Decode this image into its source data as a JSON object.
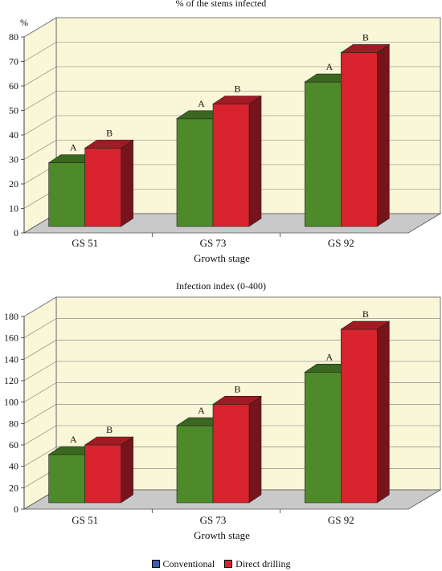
{
  "legend": {
    "items": [
      {
        "label": "Conventional",
        "color": "#3a5fa8"
      },
      {
        "label": "Direct drilling",
        "color": "#d8232f"
      }
    ]
  },
  "colors": {
    "conventional_bar": "#4e8a2a",
    "direct_drilling_bar": "#d8232f",
    "back_wall": "#faf6d8",
    "floor": "#c9c9c9"
  },
  "chart_data": [
    {
      "type": "bar",
      "title": "% of the stems infected",
      "ylabel": "%",
      "xlabel": "Growth stage",
      "categories": [
        "GS 51",
        "GS 73",
        "GS 92"
      ],
      "ylim": [
        0,
        80
      ],
      "yticks": [
        0,
        10,
        20,
        30,
        40,
        50,
        60,
        70,
        80
      ],
      "grid": true,
      "series": [
        {
          "name": "Conventional",
          "values": [
            26,
            44,
            59
          ],
          "labels": [
            "A",
            "A",
            "A"
          ]
        },
        {
          "name": "Direct drilling",
          "values": [
            32,
            50,
            71
          ],
          "labels": [
            "B",
            "B",
            "B"
          ]
        }
      ]
    },
    {
      "type": "bar",
      "title": "Infection index (0-400)",
      "ylabel": "",
      "xlabel": "Growth stage",
      "categories": [
        "GS 51",
        "GS 73",
        "GS 92"
      ],
      "ylim": [
        0,
        180
      ],
      "yticks": [
        0,
        20,
        40,
        60,
        80,
        100,
        120,
        140,
        160,
        180
      ],
      "grid": true,
      "series": [
        {
          "name": "Conventional",
          "values": [
            45,
            72,
            122
          ],
          "labels": [
            "A",
            "A",
            "A"
          ]
        },
        {
          "name": "Direct drilling",
          "values": [
            54,
            92,
            162
          ],
          "labels": [
            "B",
            "B",
            "B"
          ]
        }
      ]
    }
  ]
}
